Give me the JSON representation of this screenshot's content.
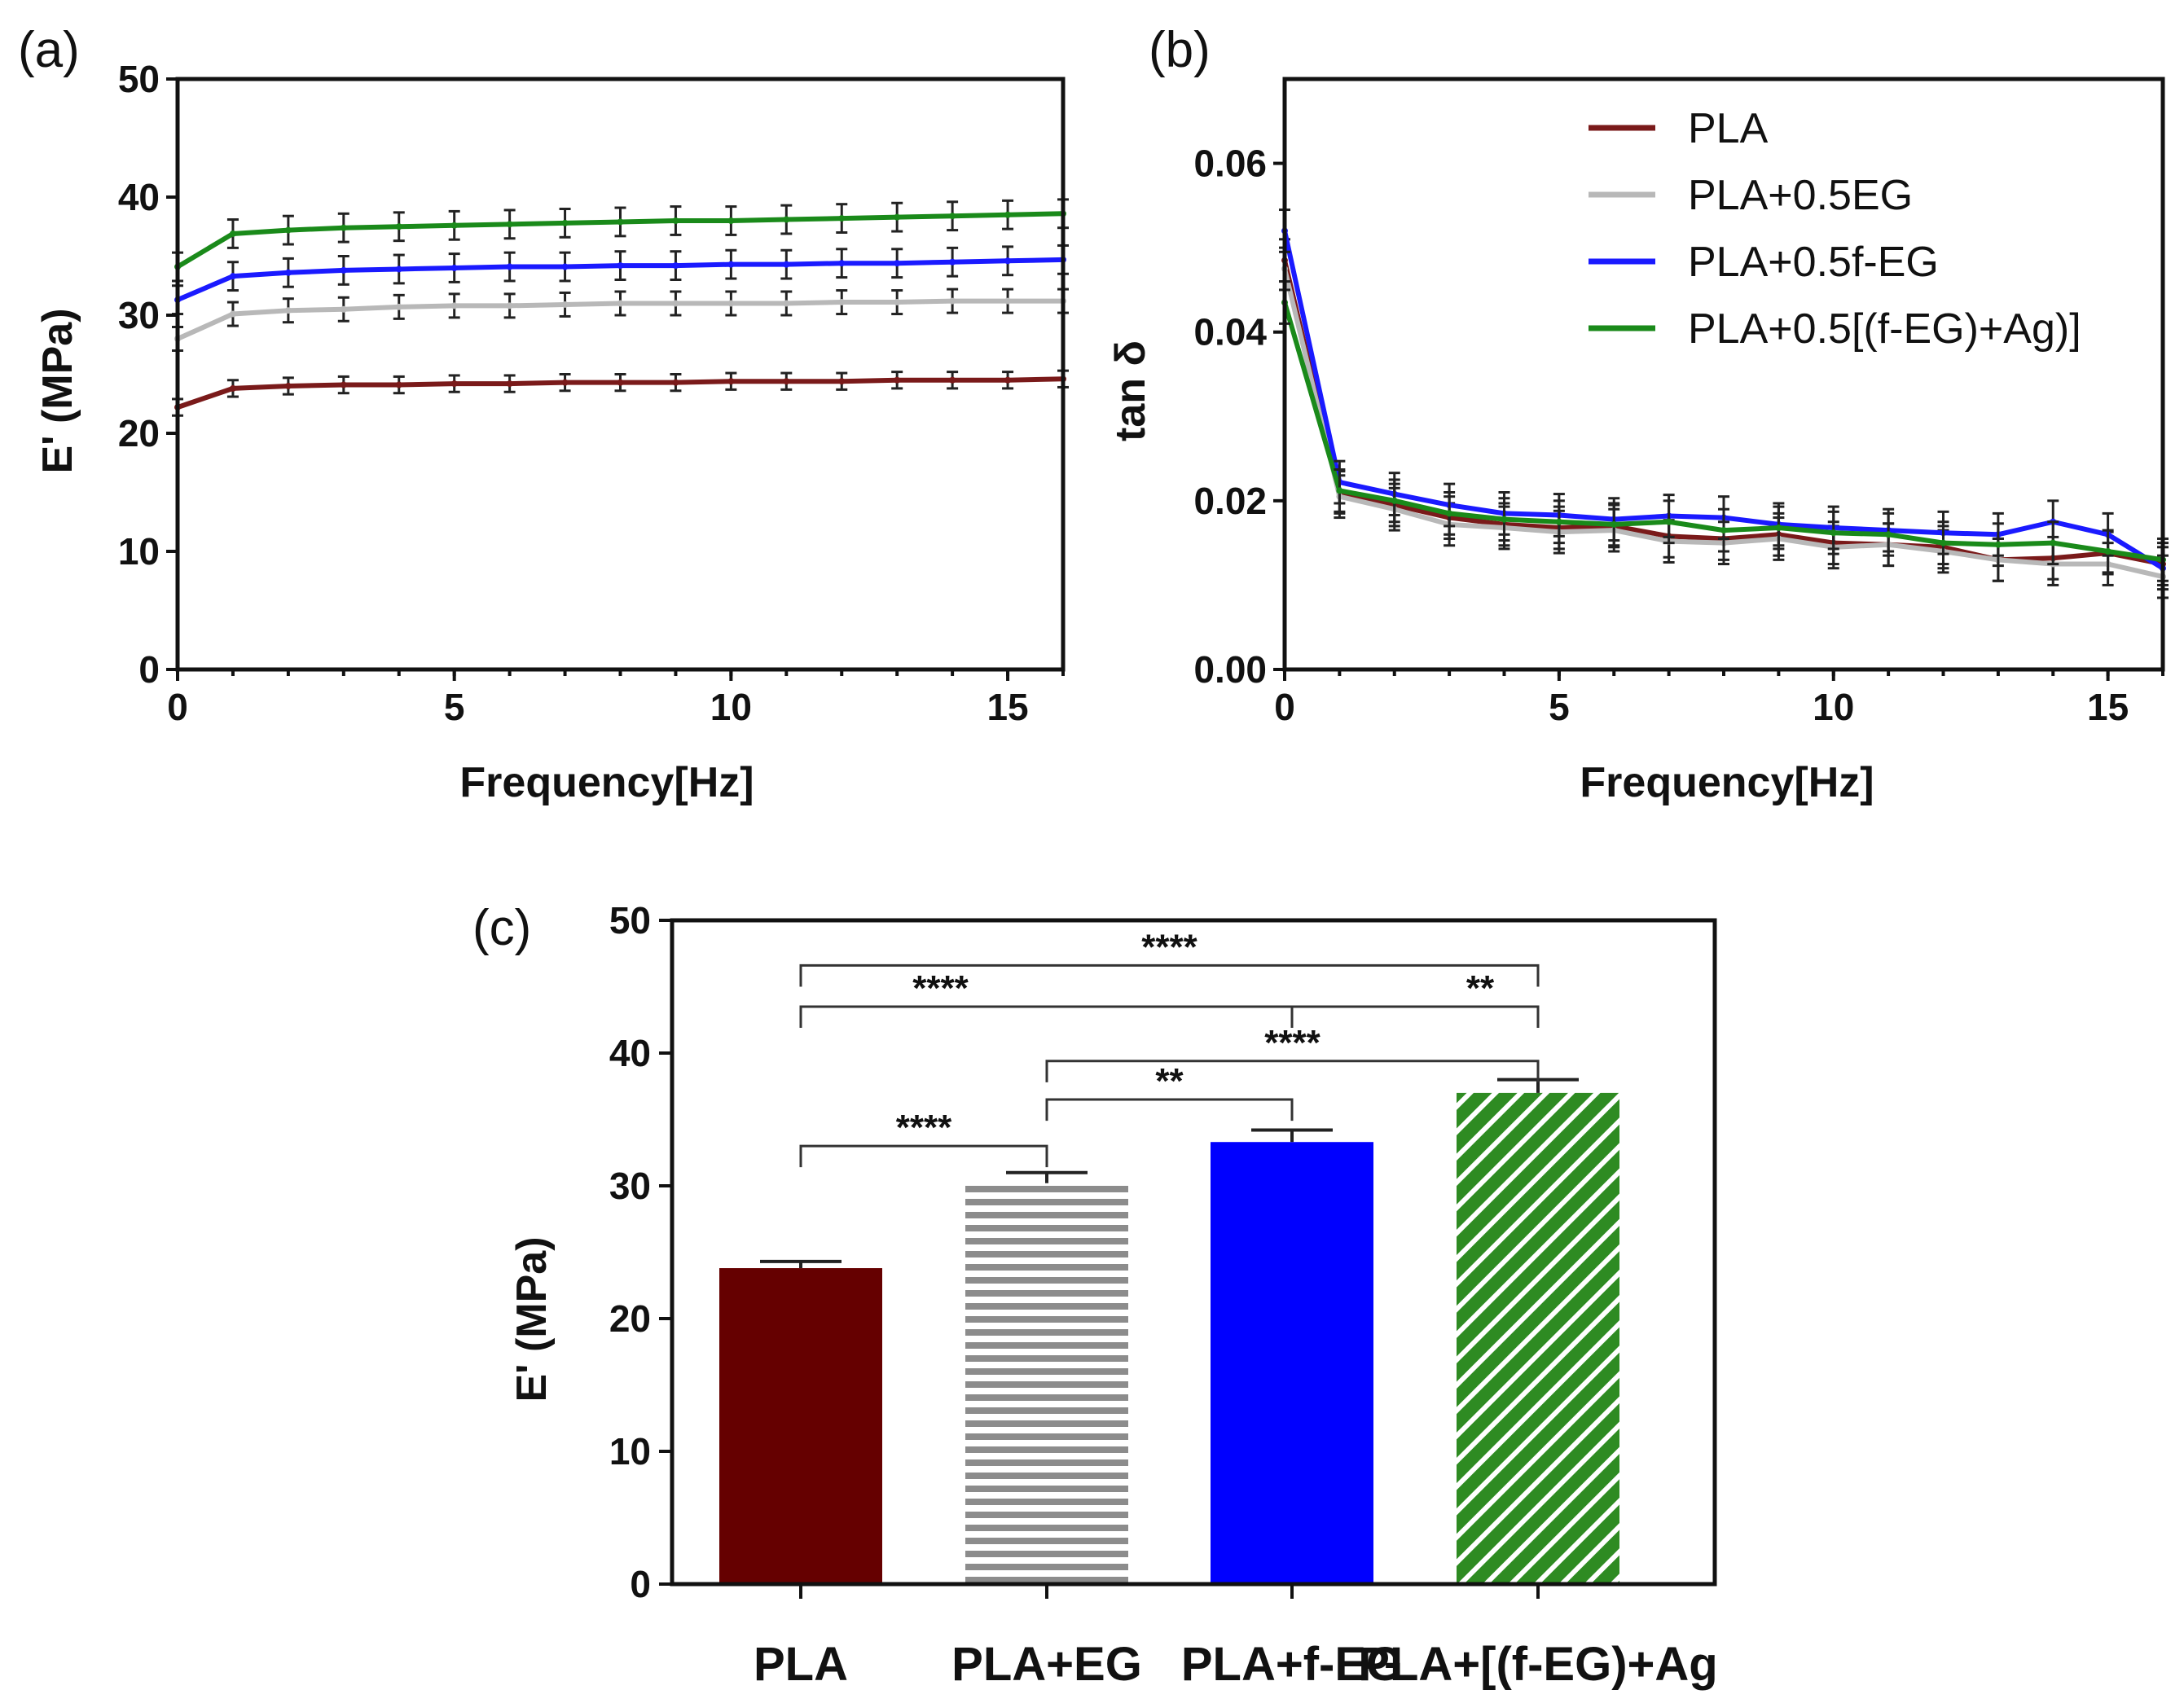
{
  "chart_data": [
    {
      "panel": "(a)",
      "type": "line",
      "xlabel": "Frequency[Hz]",
      "ylabel": "E' (MPa)",
      "xlim": [
        0,
        16
      ],
      "ylim": [
        0,
        50
      ],
      "xticks": [
        0,
        5,
        10,
        15
      ],
      "yticks": [
        0,
        10,
        20,
        30,
        40,
        50
      ],
      "x": [
        0,
        1,
        2,
        3,
        4,
        5,
        6,
        7,
        8,
        9,
        10,
        11,
        12,
        13,
        14,
        15,
        16
      ],
      "series": [
        {
          "name": "PLA",
          "color": "#7a1a1a",
          "values": [
            22.2,
            23.8,
            24.0,
            24.1,
            24.1,
            24.2,
            24.2,
            24.3,
            24.3,
            24.3,
            24.4,
            24.4,
            24.4,
            24.5,
            24.5,
            24.5,
            24.6
          ],
          "error": 0.7
        },
        {
          "name": "PLA+0.5EG",
          "color": "#b8b8b8",
          "values": [
            28.0,
            30.1,
            30.4,
            30.5,
            30.7,
            30.8,
            30.8,
            30.9,
            31.0,
            31.0,
            31.0,
            31.0,
            31.1,
            31.1,
            31.2,
            31.2,
            31.2
          ],
          "error": 1.0
        },
        {
          "name": "PLA+0.5f-EG",
          "color": "#1a1aff",
          "values": [
            31.3,
            33.3,
            33.6,
            33.8,
            33.9,
            34.0,
            34.1,
            34.1,
            34.2,
            34.2,
            34.3,
            34.3,
            34.4,
            34.4,
            34.5,
            34.6,
            34.7
          ],
          "error": 1.2
        },
        {
          "name": "PLA+0.5[(f-EG)+Ag)]",
          "color": "#1a8a1a",
          "values": [
            34.1,
            36.9,
            37.2,
            37.4,
            37.5,
            37.6,
            37.7,
            37.8,
            37.9,
            38.0,
            38.0,
            38.1,
            38.2,
            38.3,
            38.4,
            38.5,
            38.6
          ],
          "error": 1.2
        }
      ]
    },
    {
      "panel": "(b)",
      "type": "line",
      "xlabel": "Frequency[Hz]",
      "ylabel": "tan δ",
      "xlim": [
        0,
        16
      ],
      "ylim": [
        0,
        0.07
      ],
      "xticks": [
        0,
        5,
        10,
        15
      ],
      "yticks": [
        "0.00",
        "0.02",
        "0.04",
        "0.06"
      ],
      "legend_position": "top-right",
      "x": [
        0,
        1,
        2,
        3,
        4,
        5,
        6,
        7,
        8,
        9,
        10,
        11,
        12,
        13,
        14,
        15,
        16
      ],
      "series": [
        {
          "name": "PLA",
          "color": "#7a1a1a",
          "values": [
            0.0485,
            0.021,
            0.0195,
            0.018,
            0.0172,
            0.0168,
            0.017,
            0.0158,
            0.0155,
            0.016,
            0.015,
            0.0148,
            0.0145,
            0.013,
            0.0132,
            0.0138,
            0.0125
          ],
          "error": 0.0025
        },
        {
          "name": "PLA+0.5EG",
          "color": "#b8b8b8",
          "values": [
            0.0475,
            0.0205,
            0.019,
            0.0172,
            0.0168,
            0.0163,
            0.0165,
            0.0152,
            0.015,
            0.0155,
            0.0145,
            0.0148,
            0.014,
            0.013,
            0.0125,
            0.0125,
            0.011
          ],
          "error": 0.0025
        },
        {
          "name": "PLA+0.5f-EG",
          "color": "#1a1aff",
          "values": [
            0.052,
            0.0222,
            0.0208,
            0.0195,
            0.0185,
            0.0183,
            0.0178,
            0.0182,
            0.018,
            0.0172,
            0.0168,
            0.0165,
            0.0162,
            0.016,
            0.0175,
            0.016,
            0.012
          ],
          "error": 0.0025
        },
        {
          "name": "PLA+0.5[(f-EG)+Ag)]",
          "color": "#1a8a1a",
          "values": [
            0.0435,
            0.0212,
            0.02,
            0.0185,
            0.0178,
            0.0175,
            0.0172,
            0.0175,
            0.0165,
            0.0168,
            0.0162,
            0.016,
            0.015,
            0.0148,
            0.015,
            0.014,
            0.013
          ],
          "error": 0.0025
        }
      ]
    },
    {
      "panel": "(c)",
      "type": "bar",
      "ylabel": "E' (MPa)",
      "ylim": [
        0,
        50
      ],
      "yticks": [
        0,
        10,
        20,
        30,
        40,
        50
      ],
      "categories": [
        "PLA",
        "PLA+EG",
        "PLA+f-EG",
        "PLA+[(f-EG)+Ag"
      ],
      "values": [
        23.8,
        30.2,
        33.3,
        37.0
      ],
      "errors": [
        0.5,
        0.8,
        0.9,
        1.0
      ],
      "colors": [
        "#650000",
        "#9a9a9a",
        "#0000ff",
        "#2e8b22"
      ],
      "patterns": [
        "solid",
        "horizontal-stripes",
        "solid",
        "diagonal-stripes"
      ],
      "significance": [
        {
          "from": 0,
          "to": 3,
          "label": "****"
        },
        {
          "from": 0,
          "to": 2,
          "label": "****"
        },
        {
          "from": 2,
          "to": 3,
          "label": "**"
        },
        {
          "from": 1,
          "to": 3,
          "label": "****"
        },
        {
          "from": 1,
          "to": 2,
          "label": "**"
        },
        {
          "from": 0,
          "to": 1,
          "label": "****"
        }
      ]
    }
  ]
}
